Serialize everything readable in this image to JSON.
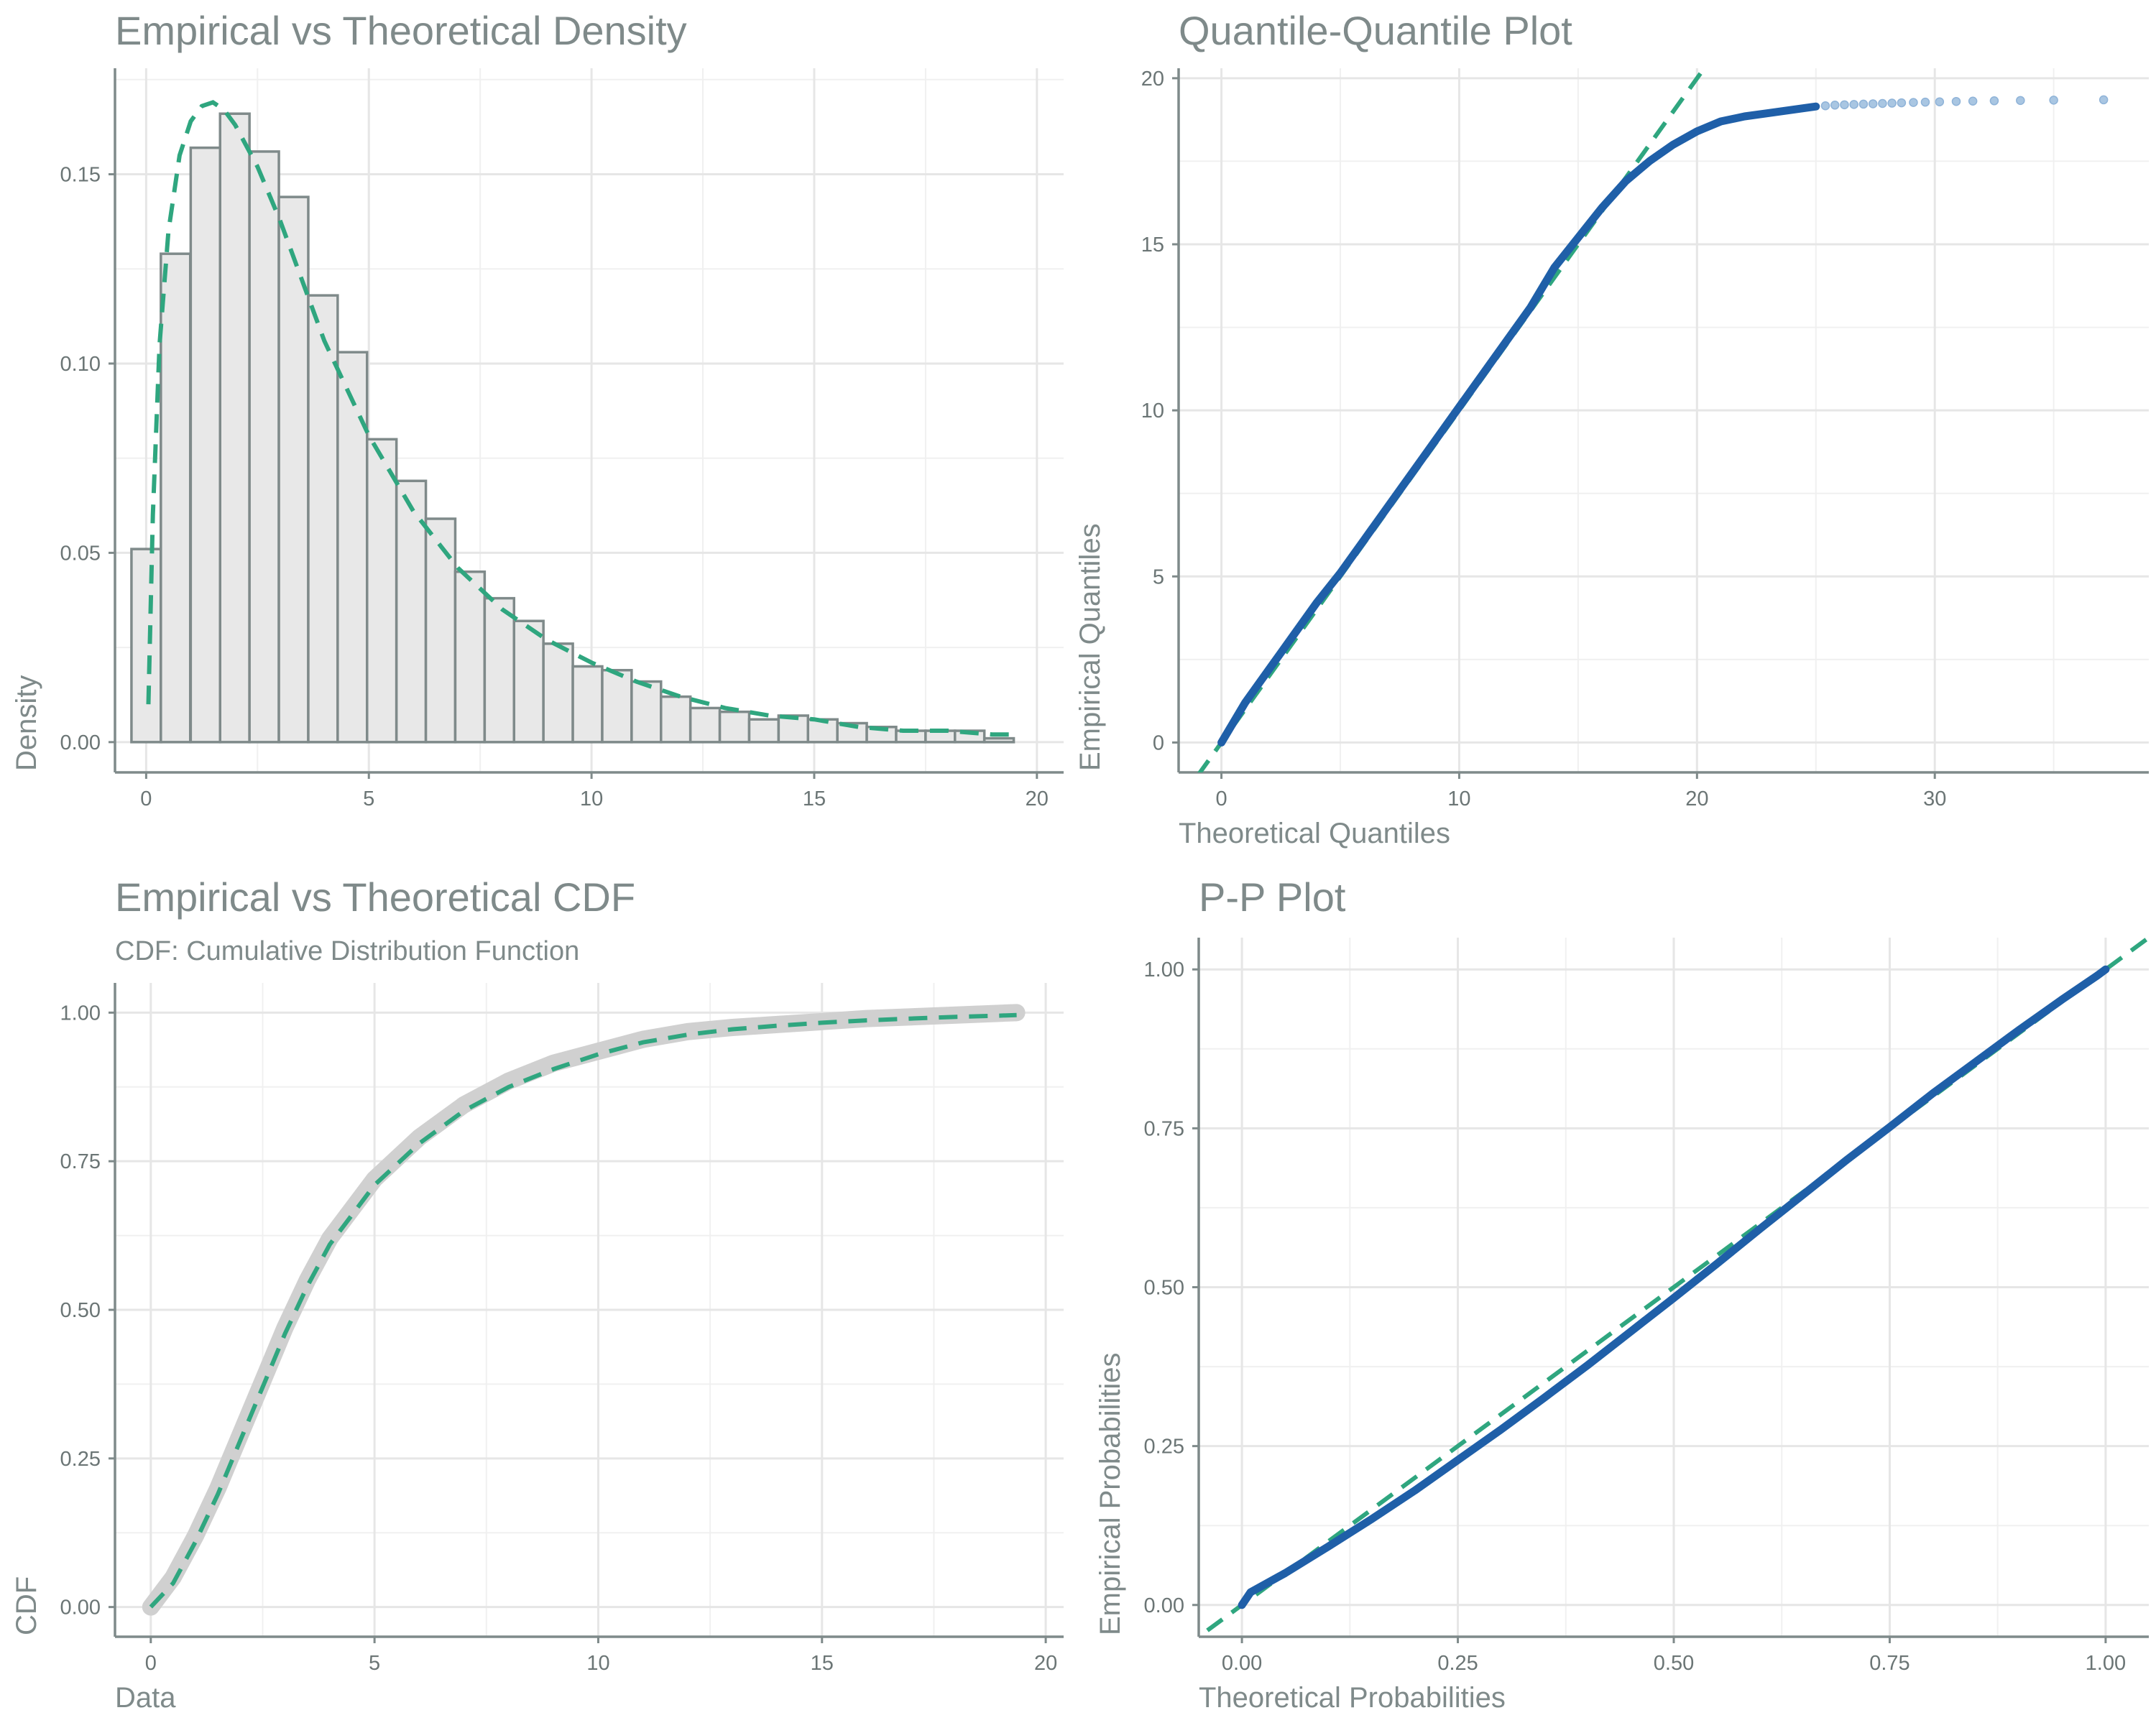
{
  "colors": {
    "bar_fill": "#e8e8e8",
    "bar_stroke": "#7f8a8a",
    "theoretical_line": "#2fa67f",
    "empirical_points": "#1f5fa8",
    "empirical_cdf": "#d0d0d0",
    "text": "#7f8a8a"
  },
  "chart_data": [
    {
      "id": "density",
      "type": "bar",
      "title": "Empirical vs Theoretical Density",
      "subtitle": "",
      "xlabel": "",
      "ylabel": "Density",
      "xlim": [
        -0.7,
        20.6
      ],
      "ylim": [
        -0.008,
        0.178
      ],
      "x_ticks": [
        0,
        5,
        10,
        15,
        20
      ],
      "x_tick_labels": [
        "0",
        "5",
        "10",
        "15",
        "20"
      ],
      "y_ticks": [
        0,
        0.05,
        0.1,
        0.15
      ],
      "y_tick_labels": [
        "0.00",
        "0.05",
        "0.10",
        "0.15"
      ],
      "grid": true,
      "bins": {
        "left_edges": [
          -0.33,
          0.33,
          1.0,
          1.66,
          2.32,
          2.98,
          3.64,
          4.3,
          4.96,
          5.62,
          6.28,
          6.94,
          7.6,
          8.26,
          8.92,
          9.58,
          10.24,
          10.9,
          11.56,
          12.22,
          12.88,
          13.54,
          14.2,
          14.86,
          15.52,
          16.18,
          16.84,
          17.5,
          18.16,
          18.82
        ],
        "width": 0.66,
        "density": [
          0.051,
          0.129,
          0.157,
          0.166,
          0.156,
          0.144,
          0.118,
          0.103,
          0.08,
          0.069,
          0.059,
          0.045,
          0.038,
          0.032,
          0.026,
          0.02,
          0.019,
          0.016,
          0.012,
          0.009,
          0.008,
          0.006,
          0.007,
          0.006,
          0.005,
          0.004,
          0.003,
          0.003,
          0.003,
          0.001
        ]
      },
      "series": [
        {
          "kind": "theoretical_density",
          "x": [
            0.05,
            0.15,
            0.3,
            0.5,
            0.75,
            1.0,
            1.25,
            1.5,
            1.75,
            2.0,
            2.5,
            3.0,
            3.5,
            4.0,
            5.0,
            6.0,
            7.0,
            8.0,
            9.0,
            10.0,
            11.0,
            12.0,
            13.0,
            14.0,
            15.0,
            16.0,
            17.0,
            18.0,
            19.0,
            19.6
          ],
          "y": [
            0.01,
            0.06,
            0.105,
            0.135,
            0.155,
            0.164,
            0.168,
            0.169,
            0.167,
            0.163,
            0.152,
            0.138,
            0.122,
            0.106,
            0.081,
            0.061,
            0.046,
            0.035,
            0.027,
            0.021,
            0.016,
            0.012,
            0.009,
            0.007,
            0.006,
            0.004,
            0.003,
            0.003,
            0.002,
            0.002
          ]
        }
      ]
    },
    {
      "id": "qq",
      "type": "scatter",
      "title": "Quantile-Quantile Plot",
      "subtitle": "",
      "xlabel": "Theoretical Quantiles",
      "ylabel": "Empirical Quantiles",
      "xlim": [
        -1.8,
        39.0
      ],
      "ylim": [
        -0.9,
        20.3
      ],
      "x_ticks": [
        0,
        10,
        20,
        30
      ],
      "x_tick_labels": [
        "0",
        "10",
        "20",
        "30"
      ],
      "y_ticks": [
        0,
        5,
        10,
        15,
        20
      ],
      "y_tick_labels": [
        "0",
        "5",
        "10",
        "15",
        "20"
      ],
      "grid": true,
      "series": [
        {
          "kind": "empirical_quantiles",
          "x": [
            0.0,
            0.5,
            1.0,
            2.0,
            3.0,
            4.0,
            5.0,
            6.0,
            7.0,
            8.0,
            9.0,
            10.0,
            11.0,
            12.0,
            13.0,
            14.0,
            15.0,
            16.0,
            17.0,
            18.0,
            19.0,
            20.0,
            21.0,
            22.0,
            23.0,
            24.0,
            25.0
          ],
          "y": [
            0.0,
            0.6,
            1.2,
            2.2,
            3.2,
            4.2,
            5.1,
            6.1,
            7.1,
            8.1,
            9.1,
            10.1,
            11.1,
            12.1,
            13.1,
            14.3,
            15.2,
            16.1,
            16.9,
            17.5,
            18.0,
            18.4,
            18.7,
            18.85,
            18.95,
            19.05,
            19.15
          ]
        },
        {
          "kind": "empirical_quantiles_tail",
          "x": [
            25.4,
            25.8,
            26.2,
            26.6,
            27.0,
            27.4,
            27.8,
            28.2,
            28.6,
            29.1,
            29.6,
            30.2,
            30.9,
            31.6,
            32.5,
            33.6,
            35.0,
            37.1
          ],
          "y": [
            19.17,
            19.19,
            19.2,
            19.21,
            19.22,
            19.23,
            19.24,
            19.25,
            19.26,
            19.27,
            19.28,
            19.29,
            19.3,
            19.31,
            19.32,
            19.33,
            19.34,
            19.35
          ]
        },
        {
          "kind": "reference_line",
          "x": [
            -1.0,
            20.3
          ],
          "y": [
            -1.0,
            20.3
          ]
        }
      ]
    },
    {
      "id": "cdf",
      "type": "line",
      "title": "Empirical vs Theoretical CDF",
      "subtitle": "CDF: Cumulative Distribution Function",
      "xlabel": "Data",
      "ylabel": "CDF",
      "xlim": [
        -0.8,
        20.4
      ],
      "ylim": [
        -0.05,
        1.05
      ],
      "x_ticks": [
        0,
        5,
        10,
        15,
        20
      ],
      "x_tick_labels": [
        "0",
        "5",
        "10",
        "15",
        "20"
      ],
      "y_ticks": [
        0,
        0.25,
        0.5,
        0.75,
        1
      ],
      "y_tick_labels": [
        "0.00",
        "0.25",
        "0.50",
        "0.75",
        "1.00"
      ],
      "grid": true,
      "series": [
        {
          "kind": "empirical_cdf",
          "x": [
            0.0,
            0.5,
            1.0,
            1.5,
            2.0,
            2.5,
            3.0,
            3.5,
            4.0,
            5.0,
            6.0,
            7.0,
            8.0,
            9.0,
            10.0,
            11.0,
            12.0,
            13.0,
            14.0,
            15.0,
            16.0,
            17.0,
            18.0,
            19.0,
            19.35
          ],
          "y": [
            0.0,
            0.05,
            0.12,
            0.2,
            0.29,
            0.38,
            0.47,
            0.55,
            0.62,
            0.72,
            0.79,
            0.845,
            0.885,
            0.915,
            0.935,
            0.955,
            0.968,
            0.975,
            0.98,
            0.985,
            0.99,
            0.993,
            0.996,
            0.999,
            1.0
          ]
        },
        {
          "kind": "theoretical_cdf",
          "x": [
            0.0,
            0.5,
            1.0,
            1.5,
            2.0,
            2.5,
            3.0,
            3.5,
            4.0,
            5.0,
            6.0,
            7.0,
            8.0,
            9.0,
            10.0,
            11.0,
            12.0,
            13.0,
            14.0,
            15.0,
            16.0,
            17.0,
            18.0,
            19.0,
            19.35
          ],
          "y": [
            0.0,
            0.04,
            0.11,
            0.19,
            0.28,
            0.37,
            0.46,
            0.54,
            0.61,
            0.71,
            0.78,
            0.835,
            0.875,
            0.905,
            0.93,
            0.95,
            0.963,
            0.972,
            0.978,
            0.983,
            0.987,
            0.99,
            0.993,
            0.995,
            0.996
          ]
        }
      ]
    },
    {
      "id": "pp",
      "type": "line",
      "title": "P-P Plot",
      "subtitle": "",
      "xlabel": "Theoretical Probabilities",
      "ylabel": "Empirical Probabilities",
      "xlim": [
        -0.05,
        1.05
      ],
      "ylim": [
        -0.05,
        1.05
      ],
      "x_ticks": [
        0,
        0.25,
        0.5,
        0.75,
        1
      ],
      "x_tick_labels": [
        "0.00",
        "0.25",
        "0.50",
        "0.75",
        "1.00"
      ],
      "y_ticks": [
        0,
        0.25,
        0.5,
        0.75,
        1
      ],
      "y_tick_labels": [
        "0.00",
        "0.25",
        "0.50",
        "0.75",
        "1.00"
      ],
      "grid": true,
      "series": [
        {
          "kind": "empirical_probabilities",
          "x": [
            0.0,
            0.01,
            0.05,
            0.1,
            0.15,
            0.2,
            0.25,
            0.3,
            0.35,
            0.4,
            0.45,
            0.5,
            0.55,
            0.6,
            0.65,
            0.7,
            0.75,
            0.8,
            0.85,
            0.9,
            0.95,
            0.99,
            1.0
          ],
          "y": [
            0.0,
            0.02,
            0.05,
            0.092,
            0.135,
            0.18,
            0.228,
            0.276,
            0.326,
            0.377,
            0.43,
            0.483,
            0.537,
            0.592,
            0.646,
            0.7,
            0.752,
            0.805,
            0.855,
            0.905,
            0.953,
            0.99,
            1.0
          ]
        },
        {
          "kind": "reference_line",
          "x": [
            -0.04,
            1.05
          ],
          "y": [
            -0.04,
            1.05
          ]
        }
      ]
    }
  ]
}
